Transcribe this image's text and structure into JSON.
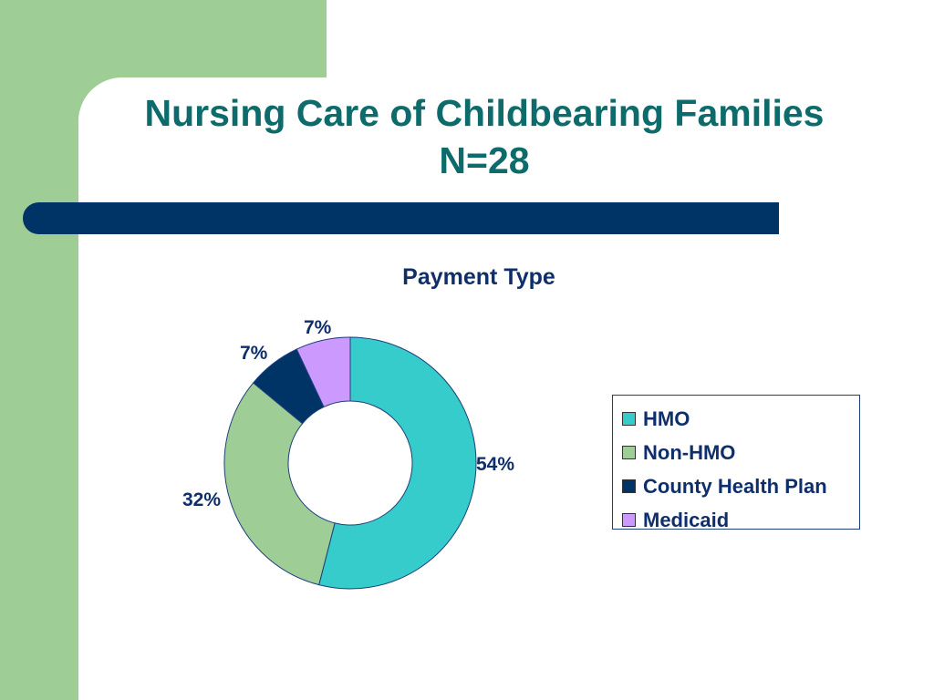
{
  "slide": {
    "title_line1": "Nursing Care of Childbearing Families",
    "title_line2": "N=28"
  },
  "colors": {
    "title": "#0d6b6b",
    "background_accent": "#9ecd96",
    "bar": "#003366",
    "text": "#0f2f6b"
  },
  "chart_data": {
    "type": "pie",
    "subtype": "doughnut",
    "title": "Payment Type",
    "categories": [
      "HMO",
      "Non-HMO",
      "County Health Plan",
      "Medicaid"
    ],
    "values": [
      54,
      32,
      7,
      7
    ],
    "labels": [
      "54%",
      "32%",
      "7%",
      "7%"
    ],
    "colors": [
      "#37cccc",
      "#9ecd96",
      "#003366",
      "#cc99ff"
    ],
    "legend_position": "right"
  }
}
